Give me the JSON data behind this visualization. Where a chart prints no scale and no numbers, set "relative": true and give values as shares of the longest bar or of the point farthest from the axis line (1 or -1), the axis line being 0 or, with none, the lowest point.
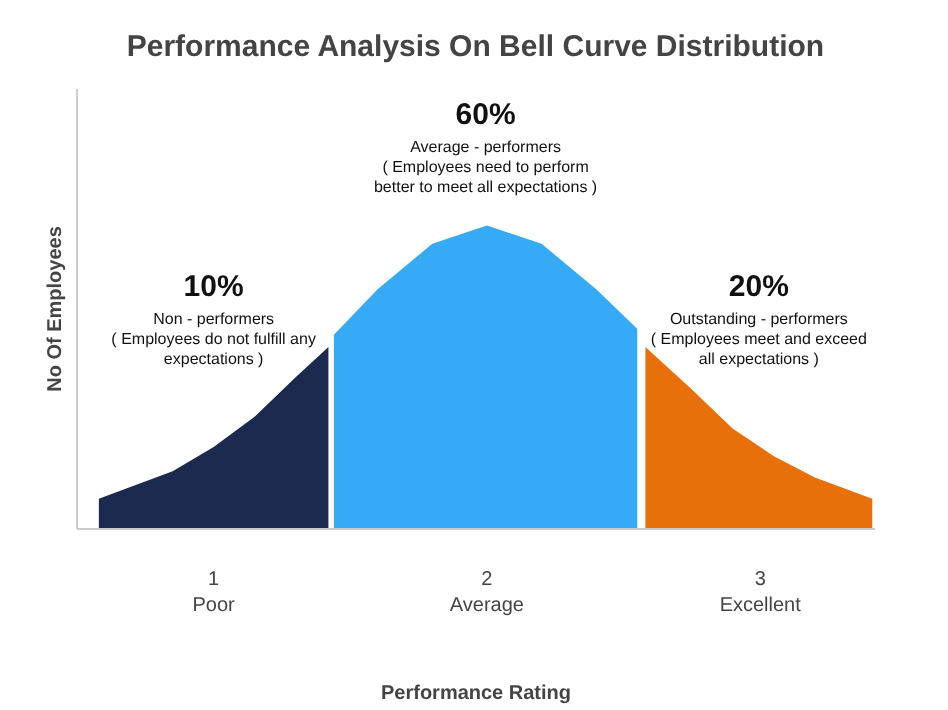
{
  "chart_data": {
    "type": "area",
    "title": "Performance Analysis On Bell Curve Distribution",
    "xlabel": "Performance Rating",
    "ylabel": "No Of Employees",
    "relative": true,
    "xlim": [
      0.5,
      3.42
    ],
    "xticks": [
      {
        "value": 1,
        "label": "1\nPoor"
      },
      {
        "value": 2,
        "label": "2\nAverage"
      },
      {
        "value": 3,
        "label": "3\nExcellent"
      }
    ],
    "series": [
      {
        "color": "#1b2a4e",
        "x": [
          0.58,
          0.7,
          0.85,
          1.0,
          1.15,
          1.3,
          1.42
        ],
        "values": [
          0.1,
          0.14,
          0.19,
          0.27,
          0.37,
          0.5,
          0.6
        ]
      },
      {
        "color": "#36aaf5",
        "x": [
          1.44,
          1.6,
          1.8,
          2.0,
          2.2,
          2.4,
          2.55
        ],
        "values": [
          0.64,
          0.79,
          0.94,
          1,
          0.94,
          0.79,
          0.66
        ]
      },
      {
        "color": "#e8700a",
        "x": [
          2.58,
          2.75,
          2.9,
          3.05,
          3.2,
          3.41
        ],
        "values": [
          0.6,
          0.46,
          0.33,
          0.24,
          0.17,
          0.1
        ]
      }
    ],
    "annotations": [
      "10%\nNon - performers\n( Employees do not fulfill any\nexpectations )",
      "60%\nAverage - performers\n( Employees need to perform\nbetter to meet all expectations )",
      "20%\nOutstanding - performers\n( Employees meet and exceed\nall expectations )"
    ],
    "grid": false
  }
}
